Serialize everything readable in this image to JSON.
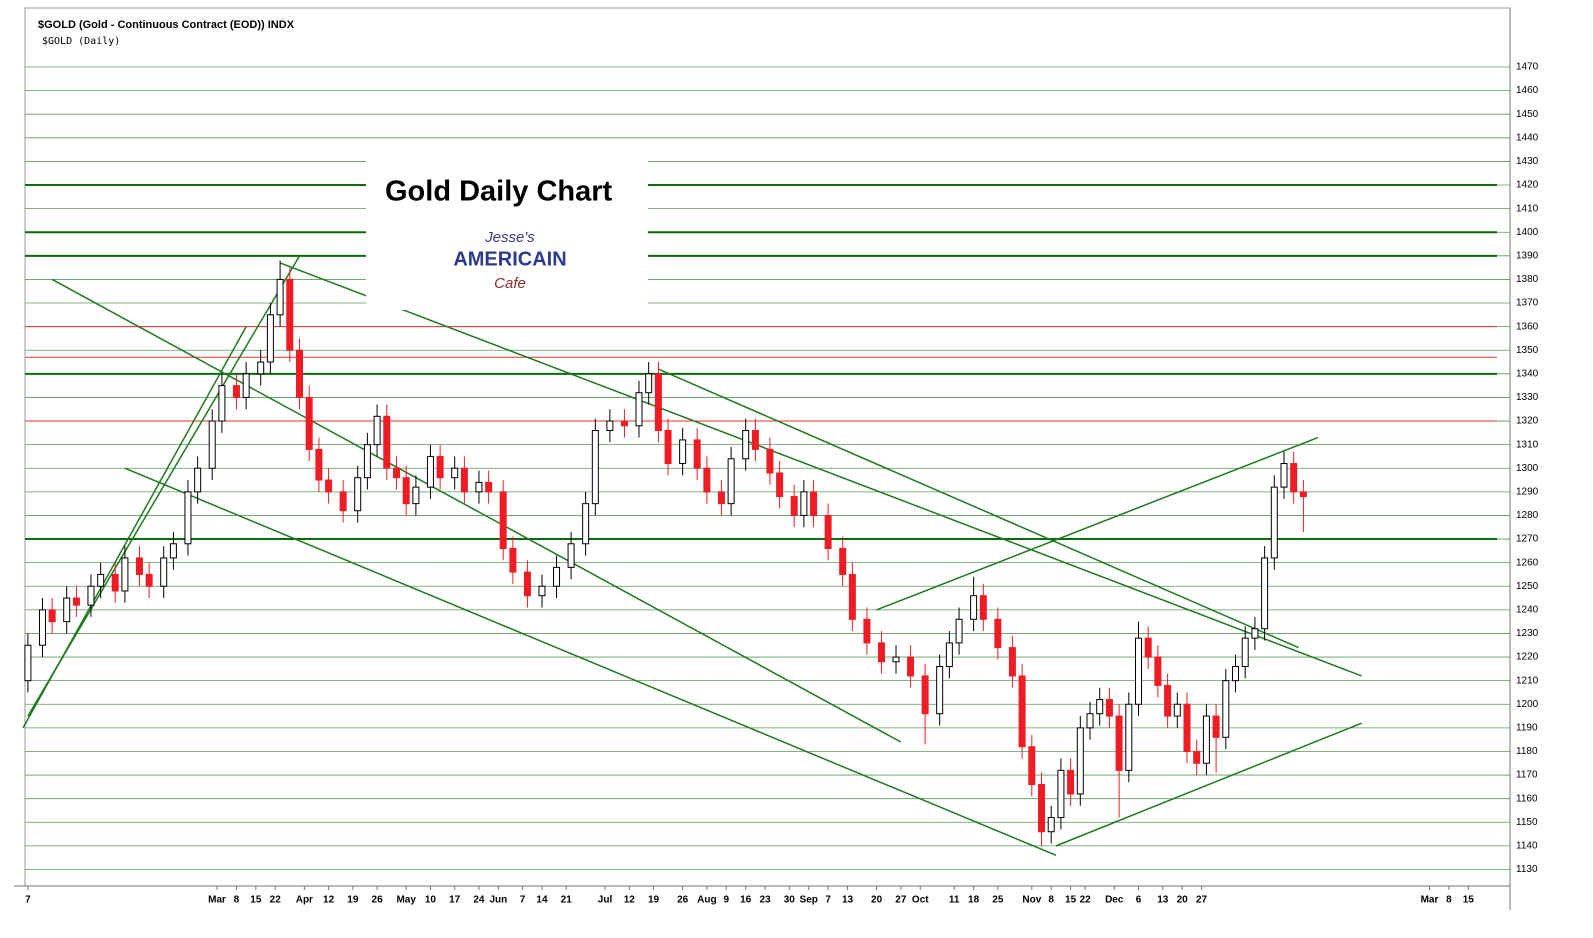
{
  "chart_data": {
    "type": "candlestick",
    "header": "$GOLD (Gold - Continuous Contract (EOD)) INDX",
    "subheader": "$GOLD (Daily)",
    "title": "Gold Daily Chart",
    "logo": [
      "Jesse's",
      "AMERICAIN",
      "Cafe"
    ],
    "up_color": "#ffffff",
    "down_color": "#ee1c24",
    "line_color": "#1f7a1f",
    "red_level_color": "#e83030",
    "grid": true,
    "xlim": [
      -0.6,
      305.6
    ],
    "ylim": [
      1123,
      1495
    ],
    "yticks": [
      1130,
      1140,
      1150,
      1160,
      1170,
      1180,
      1190,
      1200,
      1210,
      1220,
      1230,
      1240,
      1250,
      1260,
      1270,
      1280,
      1290,
      1300,
      1310,
      1320,
      1330,
      1340,
      1350,
      1360,
      1370,
      1380,
      1390,
      1400,
      1410,
      1420,
      1430,
      1440,
      1450,
      1460,
      1470
    ],
    "xticks": [
      {
        "value": 0,
        "label": "7"
      },
      {
        "value": 39,
        "label": "Mar"
      },
      {
        "value": 43,
        "label": "8"
      },
      {
        "value": 47,
        "label": "15"
      },
      {
        "value": 51,
        "label": "22"
      },
      {
        "value": 57,
        "label": "Apr"
      },
      {
        "value": 62,
        "label": "12"
      },
      {
        "value": 67,
        "label": "19"
      },
      {
        "value": 72,
        "label": "26"
      },
      {
        "value": 78,
        "label": "May"
      },
      {
        "value": 83,
        "label": "10"
      },
      {
        "value": 88,
        "label": "17"
      },
      {
        "value": 93,
        "label": "24"
      },
      {
        "value": 97,
        "label": "Jun"
      },
      {
        "value": 102,
        "label": "7"
      },
      {
        "value": 106,
        "label": "14"
      },
      {
        "value": 111,
        "label": "21"
      },
      {
        "value": 119,
        "label": "Jul"
      },
      {
        "value": 124,
        "label": "12"
      },
      {
        "value": 129,
        "label": "19"
      },
      {
        "value": 135,
        "label": "26"
      },
      {
        "value": 140,
        "label": "Aug"
      },
      {
        "value": 144,
        "label": "9"
      },
      {
        "value": 148,
        "label": "16"
      },
      {
        "value": 152,
        "label": "23"
      },
      {
        "value": 157,
        "label": "30"
      },
      {
        "value": 161,
        "label": "Sep"
      },
      {
        "value": 165,
        "label": "7"
      },
      {
        "value": 169,
        "label": "13"
      },
      {
        "value": 175,
        "label": "20"
      },
      {
        "value": 180,
        "label": "27"
      },
      {
        "value": 184,
        "label": "Oct"
      },
      {
        "value": 191,
        "label": "11"
      },
      {
        "value": 195,
        "label": "18"
      },
      {
        "value": 200,
        "label": "25"
      },
      {
        "value": 207,
        "label": "Nov"
      },
      {
        "value": 211,
        "label": "8"
      },
      {
        "value": 215,
        "label": "15"
      },
      {
        "value": 218,
        "label": "22"
      },
      {
        "value": 224,
        "label": "Dec"
      },
      {
        "value": 229,
        "label": "6"
      },
      {
        "value": 234,
        "label": "13"
      },
      {
        "value": 238,
        "label": "20"
      },
      {
        "value": 242,
        "label": "27"
      },
      {
        "value": 289,
        "label": "Mar"
      },
      {
        "value": 293,
        "label": "8"
      },
      {
        "value": 297,
        "label": "15"
      }
    ],
    "red_levels": [
      1320,
      1347,
      1360
    ],
    "key_levels": [
      1270,
      1340,
      1390,
      1400,
      1420
    ],
    "trendlines": [
      {
        "x": [
          0,
          56
        ],
        "y": [
          1195,
          1390
        ]
      },
      {
        "x": [
          52,
          275
        ],
        "y": [
          1387,
          1212
        ]
      },
      {
        "x": [
          20,
          212
        ],
        "y": [
          1300,
          1136
        ]
      },
      {
        "x": [
          5,
          180
        ],
        "y": [
          1380,
          1184
        ]
      },
      {
        "x": [
          175,
          266
        ],
        "y": [
          1240,
          1313
        ]
      },
      {
        "x": [
          212,
          275
        ],
        "y": [
          1140,
          1192
        ]
      },
      {
        "x": [
          -1,
          45
        ],
        "y": [
          1190,
          1360
        ]
      },
      {
        "x": [
          130,
          262
        ],
        "y": [
          1342,
          1224
        ]
      }
    ],
    "x": [
      0,
      3,
      5,
      8,
      10,
      13,
      15,
      18,
      20,
      23,
      25,
      28,
      30,
      33,
      35,
      38,
      40,
      43,
      45,
      48,
      50,
      52,
      54,
      56,
      58,
      60,
      62,
      65,
      68,
      70,
      72,
      74,
      76,
      78,
      80,
      83,
      85,
      88,
      90,
      93,
      95,
      98,
      100,
      103,
      106,
      109,
      112,
      115,
      117,
      120,
      123,
      126,
      128,
      130,
      132,
      135,
      138,
      140,
      143,
      145,
      148,
      150,
      153,
      155,
      158,
      160,
      162,
      165,
      168,
      170,
      173,
      176,
      179,
      182,
      185,
      188,
      190,
      192,
      195,
      197,
      200,
      203,
      205,
      207,
      209,
      211,
      213,
      215,
      217,
      219,
      221,
      223,
      225,
      227,
      229,
      231,
      233,
      235,
      237,
      239,
      241,
      243,
      245,
      247,
      249,
      251,
      253,
      255,
      257,
      259,
      261,
      263
    ],
    "open": [
      1210,
      1225,
      1240,
      1235,
      1245,
      1242,
      1250,
      1255,
      1248,
      1262,
      1255,
      1250,
      1262,
      1268,
      1290,
      1300,
      1320,
      1335,
      1330,
      1340,
      1345,
      1365,
      1380,
      1350,
      1330,
      1308,
      1295,
      1290,
      1282,
      1296,
      1310,
      1322,
      1300,
      1296,
      1285,
      1292,
      1305,
      1296,
      1300,
      1290,
      1294,
      1290,
      1266,
      1256,
      1246,
      1250,
      1258,
      1268,
      1285,
      1316,
      1320,
      1318,
      1332,
      1340,
      1316,
      1302,
      1312,
      1300,
      1290,
      1285,
      1304,
      1316,
      1308,
      1298,
      1288,
      1280,
      1290,
      1280,
      1266,
      1255,
      1236,
      1226,
      1218,
      1220,
      1212,
      1196,
      1216,
      1226,
      1236,
      1246,
      1236,
      1224,
      1212,
      1182,
      1166,
      1146,
      1152,
      1172,
      1162,
      1190,
      1196,
      1202,
      1195,
      1172,
      1200,
      1228,
      1220,
      1208,
      1195,
      1200,
      1180,
      1175,
      1195,
      1186,
      1210,
      1216,
      1228,
      1232,
      1262,
      1292,
      1302,
      1290
    ],
    "high": [
      1230,
      1245,
      1245,
      1250,
      1250,
      1255,
      1260,
      1260,
      1267,
      1267,
      1260,
      1267,
      1273,
      1295,
      1305,
      1325,
      1340,
      1340,
      1345,
      1350,
      1370,
      1388,
      1385,
      1355,
      1335,
      1313,
      1300,
      1295,
      1301,
      1315,
      1327,
      1327,
      1305,
      1301,
      1297,
      1310,
      1310,
      1305,
      1305,
      1299,
      1299,
      1295,
      1271,
      1261,
      1255,
      1263,
      1273,
      1290,
      1321,
      1325,
      1325,
      1337,
      1345,
      1345,
      1321,
      1317,
      1317,
      1305,
      1295,
      1309,
      1321,
      1321,
      1313,
      1303,
      1293,
      1295,
      1295,
      1285,
      1271,
      1260,
      1241,
      1231,
      1225,
      1225,
      1217,
      1221,
      1231,
      1241,
      1254,
      1251,
      1241,
      1229,
      1217,
      1187,
      1171,
      1157,
      1177,
      1177,
      1195,
      1201,
      1207,
      1207,
      1200,
      1205,
      1235,
      1233,
      1225,
      1213,
      1205,
      1205,
      1185,
      1200,
      1200,
      1215,
      1221,
      1233,
      1237,
      1267,
      1297,
      1307,
      1307,
      1295
    ],
    "low": [
      1205,
      1220,
      1230,
      1230,
      1237,
      1237,
      1245,
      1243,
      1243,
      1250,
      1245,
      1245,
      1257,
      1263,
      1285,
      1295,
      1315,
      1325,
      1325,
      1335,
      1340,
      1360,
      1345,
      1325,
      1303,
      1290,
      1285,
      1277,
      1277,
      1291,
      1305,
      1295,
      1291,
      1280,
      1280,
      1287,
      1291,
      1291,
      1285,
      1285,
      1285,
      1261,
      1251,
      1241,
      1241,
      1245,
      1253,
      1263,
      1280,
      1311,
      1313,
      1313,
      1327,
      1311,
      1297,
      1297,
      1295,
      1285,
      1280,
      1280,
      1299,
      1303,
      1293,
      1283,
      1275,
      1275,
      1275,
      1261,
      1250,
      1231,
      1221,
      1213,
      1213,
      1207,
      1183,
      1191,
      1211,
      1221,
      1231,
      1231,
      1219,
      1207,
      1177,
      1161,
      1140,
      1141,
      1147,
      1157,
      1157,
      1185,
      1191,
      1190,
      1152,
      1167,
      1195,
      1215,
      1203,
      1190,
      1190,
      1175,
      1170,
      1170,
      1171,
      1181,
      1205,
      1211,
      1223,
      1227,
      1257,
      1287,
      1285,
      1273
    ],
    "close": [
      1225,
      1240,
      1235,
      1245,
      1242,
      1250,
      1255,
      1248,
      1262,
      1255,
      1250,
      1262,
      1268,
      1290,
      1300,
      1320,
      1335,
      1330,
      1340,
      1345,
      1365,
      1380,
      1350,
      1330,
      1308,
      1295,
      1290,
      1282,
      1296,
      1310,
      1322,
      1300,
      1296,
      1285,
      1292,
      1305,
      1296,
      1300,
      1290,
      1294,
      1290,
      1266,
      1256,
      1246,
      1250,
      1258,
      1268,
      1285,
      1316,
      1320,
      1318,
      1332,
      1340,
      1316,
      1302,
      1312,
      1300,
      1290,
      1285,
      1304,
      1316,
      1308,
      1298,
      1288,
      1280,
      1290,
      1280,
      1266,
      1255,
      1236,
      1226,
      1218,
      1220,
      1212,
      1196,
      1216,
      1226,
      1236,
      1246,
      1236,
      1224,
      1212,
      1182,
      1166,
      1146,
      1152,
      1172,
      1162,
      1190,
      1196,
      1202,
      1195,
      1172,
      1200,
      1228,
      1220,
      1208,
      1195,
      1200,
      1180,
      1175,
      1195,
      1186,
      1210,
      1216,
      1228,
      1232,
      1262,
      1292,
      1302,
      1290,
      1288
    ]
  }
}
